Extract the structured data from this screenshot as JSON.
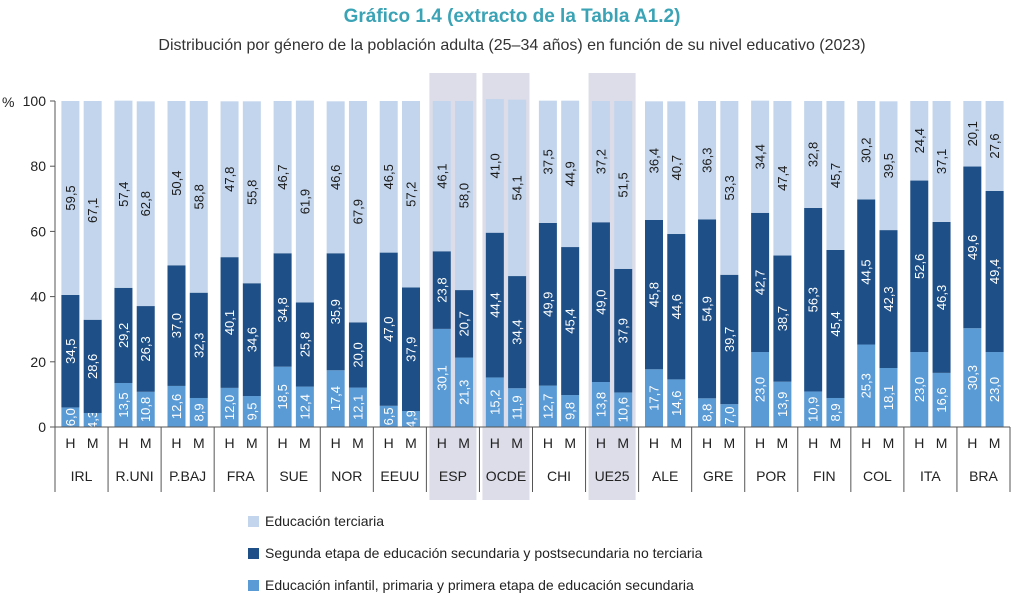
{
  "title": "Gráfico 1.4 (extracto de la Tabla A1.2)",
  "subtitle": "Distribución por género de la población adulta (25–34 años) en función de su nivel educativo (2023)",
  "chart_data": {
    "type": "bar",
    "stacked": true,
    "y_unit_label": "%",
    "ylim": [
      0,
      100
    ],
    "yticks": [
      0,
      20,
      40,
      60,
      80,
      100
    ],
    "grid": false,
    "highlighted_groups": [
      "ESP",
      "OCDE",
      "UE25"
    ],
    "sexes": [
      "H",
      "M"
    ],
    "groups": [
      "IRL",
      "R.UNI",
      "P.BAJ",
      "FRA",
      "SUE",
      "NOR",
      "EEUU",
      "ESP",
      "OCDE",
      "CHI",
      "UE25",
      "ALE",
      "GRE",
      "POR",
      "FIN",
      "COL",
      "ITA",
      "BRA"
    ],
    "series": [
      {
        "name": "Educación infantil, primaria y primera etapa de educación secundaria",
        "color": "#5b9bd5",
        "values": [
          6.0,
          4.3,
          13.5,
          10.8,
          12.6,
          8.9,
          12.0,
          9.5,
          18.5,
          12.4,
          17.4,
          12.1,
          6.5,
          4.9,
          30.1,
          21.3,
          15.2,
          11.9,
          12.7,
          9.8,
          13.8,
          10.6,
          17.7,
          14.6,
          8.8,
          7.0,
          23.0,
          13.9,
          10.9,
          8.9,
          25.3,
          18.1,
          23.0,
          16.6,
          30.3,
          23.0
        ]
      },
      {
        "name": "Segunda etapa de educación secundaria y postsecundaria no terciaria",
        "color": "#1e4f86",
        "values": [
          34.5,
          28.6,
          29.2,
          26.3,
          37.0,
          32.3,
          40.1,
          34.6,
          34.8,
          25.8,
          35.9,
          20.0,
          47.0,
          37.9,
          23.8,
          20.7,
          44.4,
          34.4,
          49.9,
          45.4,
          49.0,
          37.9,
          45.8,
          44.6,
          54.9,
          39.7,
          42.7,
          38.7,
          56.3,
          45.4,
          44.5,
          42.3,
          52.6,
          46.3,
          49.6,
          49.4
        ]
      },
      {
        "name": "Educación terciaria",
        "color": "#c3d5ec",
        "values": [
          59.5,
          67.1,
          57.4,
          62.8,
          50.4,
          58.8,
          47.8,
          55.8,
          46.7,
          61.9,
          46.6,
          67.9,
          46.5,
          57.2,
          46.1,
          58.0,
          41.0,
          54.1,
          37.5,
          44.9,
          37.2,
          51.5,
          36.4,
          40.7,
          36.3,
          53.3,
          34.4,
          47.4,
          32.8,
          45.7,
          30.2,
          39.5,
          24.4,
          37.1,
          20.1,
          27.6
        ]
      }
    ]
  }
}
